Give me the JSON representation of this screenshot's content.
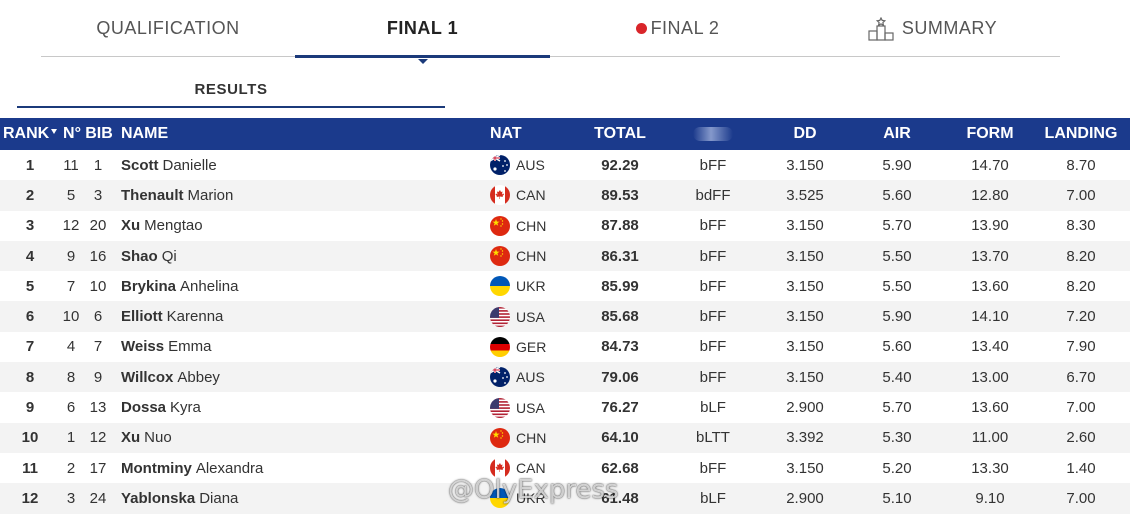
{
  "tabs": [
    {
      "label": "QUALIFICATION",
      "active": false
    },
    {
      "label": "FINAL 1",
      "active": true
    },
    {
      "label": "FINAL 2",
      "active": false,
      "live": true
    },
    {
      "label": "SUMMARY",
      "active": false,
      "icon": "podium-icon"
    }
  ],
  "subtab": {
    "label": "RESULTS"
  },
  "table": {
    "headers": {
      "rank": "RANK",
      "no": "N°",
      "bib": "BIB",
      "name": "NAME",
      "nat": "NAT",
      "total": "TOTAL",
      "dd": "DD",
      "air": "AIR",
      "form": "FORM",
      "landing": "LANDING"
    },
    "rows": [
      {
        "rank": "1",
        "no": "11",
        "bib": "1",
        "surname": "Scott",
        "given": "Danielle",
        "nat": "AUS",
        "total": "92.29",
        "jump": "bFF",
        "dd": "3.150",
        "air": "5.90",
        "form": "14.70",
        "landing": "8.70"
      },
      {
        "rank": "2",
        "no": "5",
        "bib": "3",
        "surname": "Thenault",
        "given": "Marion",
        "nat": "CAN",
        "total": "89.53",
        "jump": "bdFF",
        "dd": "3.525",
        "air": "5.60",
        "form": "12.80",
        "landing": "7.00"
      },
      {
        "rank": "3",
        "no": "12",
        "bib": "20",
        "surname": "Xu",
        "given": "Mengtao",
        "nat": "CHN",
        "total": "87.88",
        "jump": "bFF",
        "dd": "3.150",
        "air": "5.70",
        "form": "13.90",
        "landing": "8.30"
      },
      {
        "rank": "4",
        "no": "9",
        "bib": "16",
        "surname": "Shao",
        "given": "Qi",
        "nat": "CHN",
        "total": "86.31",
        "jump": "bFF",
        "dd": "3.150",
        "air": "5.50",
        "form": "13.70",
        "landing": "8.20"
      },
      {
        "rank": "5",
        "no": "7",
        "bib": "10",
        "surname": "Brykina",
        "given": "Anhelina",
        "nat": "UKR",
        "total": "85.99",
        "jump": "bFF",
        "dd": "3.150",
        "air": "5.50",
        "form": "13.60",
        "landing": "8.20"
      },
      {
        "rank": "6",
        "no": "10",
        "bib": "6",
        "surname": "Elliott",
        "given": "Karenna",
        "nat": "USA",
        "total": "85.68",
        "jump": "bFF",
        "dd": "3.150",
        "air": "5.90",
        "form": "14.10",
        "landing": "7.20"
      },
      {
        "rank": "7",
        "no": "4",
        "bib": "7",
        "surname": "Weiss",
        "given": "Emma",
        "nat": "GER",
        "total": "84.73",
        "jump": "bFF",
        "dd": "3.150",
        "air": "5.60",
        "form": "13.40",
        "landing": "7.90"
      },
      {
        "rank": "8",
        "no": "8",
        "bib": "9",
        "surname": "Willcox",
        "given": "Abbey",
        "nat": "AUS",
        "total": "79.06",
        "jump": "bFF",
        "dd": "3.150",
        "air": "5.40",
        "form": "13.00",
        "landing": "6.70"
      },
      {
        "rank": "9",
        "no": "6",
        "bib": "13",
        "surname": "Dossa",
        "given": "Kyra",
        "nat": "USA",
        "total": "76.27",
        "jump": "bLF",
        "dd": "2.900",
        "air": "5.70",
        "form": "13.60",
        "landing": "7.00"
      },
      {
        "rank": "10",
        "no": "1",
        "bib": "12",
        "surname": "Xu",
        "given": "Nuo",
        "nat": "CHN",
        "total": "64.10",
        "jump": "bLTT",
        "dd": "3.392",
        "air": "5.30",
        "form": "11.00",
        "landing": "2.60"
      },
      {
        "rank": "11",
        "no": "2",
        "bib": "17",
        "surname": "Montminy",
        "given": "Alexandra",
        "nat": "CAN",
        "total": "62.68",
        "jump": "bFF",
        "dd": "3.150",
        "air": "5.20",
        "form": "13.30",
        "landing": "1.40"
      },
      {
        "rank": "12",
        "no": "3",
        "bib": "24",
        "surname": "Yablonska",
        "given": "Diana",
        "nat": "UKR",
        "total": "61.48",
        "jump": "bLF",
        "dd": "2.900",
        "air": "5.10",
        "form": "9.10",
        "landing": "7.00"
      }
    ]
  },
  "watermark": "@OlyExpress",
  "colors": {
    "header_bg": "#1b3a8c",
    "accent": "#1b3a7a",
    "live": "#d9252a",
    "row_alt": "#f3f3f3"
  }
}
